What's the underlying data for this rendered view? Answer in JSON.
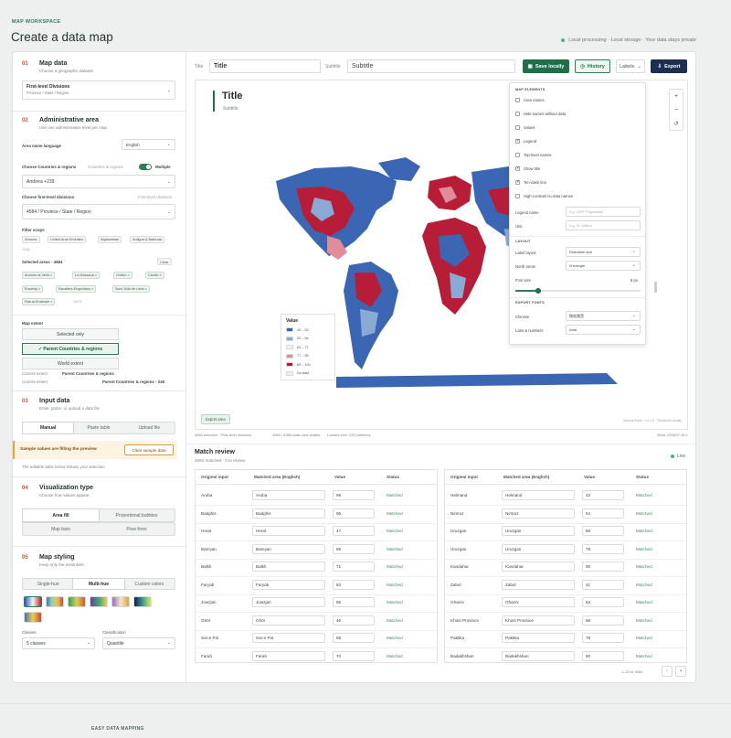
{
  "header": {
    "eyebrow": "MAP WORKSPACE",
    "title": "Create a data map",
    "privacy": "Local processing · Local storage · Your data stays private"
  },
  "sidebar": {
    "map_data": {
      "num": "01",
      "title": "Map data",
      "subtitle": "Choose a geographic dataset",
      "dataset": "First-level Divisions",
      "dataset_sub": "Province / State / Region"
    },
    "admin": {
      "num": "02",
      "title": "Administrative area",
      "subtitle": "Use one administrative level per map",
      "lang_label": "Area name language",
      "lang_value": "English",
      "countries_label": "Choose Countries & regions",
      "countries_hint": "Countries & regions",
      "multiple_label": "Multiple",
      "countries_value": "Andorra +239",
      "divisions_label": "Choose first-level divisions",
      "divisions_hint": "First-level divisions",
      "divisions_value": "4584 / Province / State / Region",
      "filter_label": "Filter scope",
      "filter_chips": [
        "Andorra",
        "United Arab Emirates",
        "Afghanistan",
        "Antigua & Barbuda"
      ],
      "filter_more": "+236",
      "selected_label": "Selected areas · 4584",
      "clear_label": "Clear",
      "selected_chips": [
        "Andorra la Vella",
        "La Massana",
        "Ordino",
        "Canillo",
        "Encamp",
        "Escaldes-Engordany",
        "Sant Julià de Lòria",
        "Ras al-Khaimah"
      ],
      "selected_more": "+4576",
      "extent_label": "Map extent",
      "extent_options": [
        "Selected only",
        "✓ Parent Countries & regions",
        "World extent"
      ],
      "current_label": "Current extent",
      "current_value": "Parent Countries & regions",
      "current_label2": "Current extent",
      "current_value2": "Parent Countries & regions · 240"
    },
    "input": {
      "num": "03",
      "title": "Input data",
      "subtitle": "Enter, paste, or upload a data file",
      "tabs": [
        "Manual",
        "Paste table",
        "Upload file"
      ],
      "notice": "Sample values are filling the preview",
      "notice_btn": "Clear sample data",
      "hint": "The editable table below follows your selection"
    },
    "viz": {
      "num": "04",
      "title": "Visualization type",
      "subtitle": "Choose how values appear",
      "options": [
        "Area fill",
        "Proportional bubbles",
        "Map bars",
        "Flow lines"
      ]
    },
    "styling": {
      "num": "05",
      "title": "Map styling",
      "subtitle": "Keep only the essentials",
      "tabs": [
        "Single-hue",
        "Multi-hue",
        "Custom colors"
      ],
      "classes_label": "Classes",
      "classes_value": "5 classes",
      "classification_label": "Classification",
      "classification_value": "Quantile"
    }
  },
  "toolbar": {
    "title_label": "Title",
    "title_value": "Title",
    "subtitle_label": "Subtitle",
    "subtitle_value": "Subtitle",
    "save_label": "Save locally",
    "history_label": "History",
    "labels_label": "Labels",
    "export_label": "Export"
  },
  "map": {
    "title": "Title",
    "subtitle": "Subtitle",
    "legend_title": "Value",
    "legend": [
      {
        "label": "40 – 52",
        "color": "#3b66b3"
      },
      {
        "label": "52 – 64",
        "color": "#8aaad6"
      },
      {
        "label": "64 – 77",
        "color": "#eef1f6"
      },
      {
        "label": "77 – 89",
        "color": "#e08c99"
      },
      {
        "label": "89 – 100",
        "color": "#b81d38"
      },
      {
        "label": "No data",
        "color": "#eceeee"
      }
    ],
    "export_area": "Export area",
    "credit": "Natural Earth · v4.1.0 · Rendered locally",
    "status": [
      "4584 selected · First-level divisions",
      "4584 / 4584 data rows usable",
      "Loaded from 240 partitions"
    ],
    "build": "Build 2025/07-30.1",
    "zoom_in": "+",
    "zoom_out": "−",
    "reset": "↺"
  },
  "panel": {
    "elements_head": "MAP ELEMENTS",
    "elements": [
      {
        "label": "Area names",
        "on": false
      },
      {
        "label": "Hide names without data",
        "on": false
      },
      {
        "label": "Values",
        "on": false
      },
      {
        "label": "Legend",
        "on": true
      },
      {
        "label": "Top-level names",
        "on": false
      },
      {
        "label": "Show title",
        "on": true
      },
      {
        "label": "Ten-dash line",
        "on": true
      },
      {
        "label": "High-contrast no-data names",
        "on": false
      }
    ],
    "legend_name_label": "Legend name",
    "legend_name_ph": "e.g. GDP, Population",
    "unit_label": "Unit",
    "unit_ph": "e.g. %, million",
    "layout_head": "LAYOUT",
    "label_layout_label": "Label layout",
    "label_layout_value": "Readable size",
    "north_label": "North arrow",
    "north_value": "N triangle",
    "font_label": "Font size",
    "font_value": "8 px",
    "font_level": 0.18,
    "export_head": "EXPORT FONTS",
    "chinese_label": "Chinese",
    "chinese_value": "微软雅黑",
    "latin_label": "Latin & numbers",
    "latin_value": "Arial"
  },
  "review": {
    "title": "Match review",
    "subtitle": "4584 matched · 0 to review",
    "live": "Live",
    "headers": [
      "Original input",
      "Matched area (English)",
      "Value",
      "Status"
    ],
    "left": [
      [
        "Aruba",
        "Aruba",
        "99",
        "Matched"
      ],
      [
        "Badghis",
        "Badghis",
        "96",
        "Matched"
      ],
      [
        "Herat",
        "Herat",
        "47",
        "Matched"
      ],
      [
        "Bamyan",
        "Bamyan",
        "59",
        "Matched"
      ],
      [
        "Balkh",
        "Balkh",
        "71",
        "Matched"
      ],
      [
        "Faryab",
        "Faryab",
        "83",
        "Matched"
      ],
      [
        "Jowzjan",
        "Jowzjan",
        "95",
        "Matched"
      ],
      [
        "Ghōr",
        "Ghōr",
        "46",
        "Matched"
      ],
      [
        "Sar-e Pol",
        "Sar-e Pol",
        "58",
        "Matched"
      ],
      [
        "Farah",
        "Farah",
        "70",
        "Matched"
      ]
    ],
    "right": [
      [
        "Helmand",
        "Helmand",
        "42",
        "Matched"
      ],
      [
        "Nimruz",
        "Nimruz",
        "54",
        "Matched"
      ],
      [
        "Uruzgan",
        "Uruzgan",
        "66",
        "Matched"
      ],
      [
        "Uruzgan",
        "Uruzgan",
        "78",
        "Matched"
      ],
      [
        "Kandahar",
        "Kandahar",
        "90",
        "Matched"
      ],
      [
        "Zabul",
        "Zabul",
        "41",
        "Matched"
      ],
      [
        "Ghazni",
        "Ghazni",
        "54",
        "Matched"
      ],
      [
        "Khost Province",
        "Khost Province",
        "66",
        "Matched"
      ],
      [
        "Paktika",
        "Paktika",
        "78",
        "Matched"
      ],
      [
        "Badakhshan",
        "Badakhshan",
        "50",
        "Matched"
      ]
    ],
    "pager": "1–20 of 4584"
  },
  "footer": {
    "brand": "EASY DATA MAPPING"
  }
}
